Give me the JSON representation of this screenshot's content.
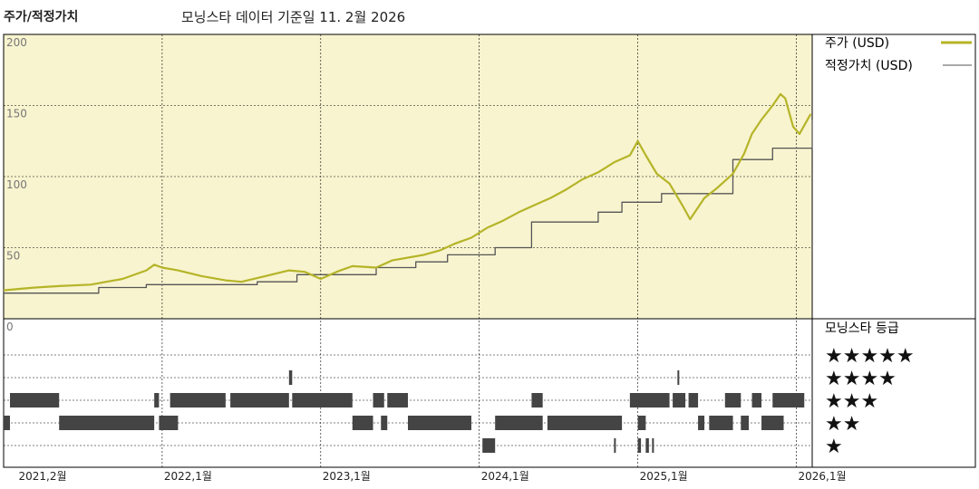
{
  "header": {
    "title": "주가/적정가치",
    "subtitle": "모닝스타 데이터 기준일 11. 2월 2026"
  },
  "colors": {
    "plot_bg": "#f8f4cf",
    "price_line": "#b5b428",
    "fair_value_line": "#555555",
    "grid": "#000000",
    "bars": "#444444"
  },
  "chart_data": {
    "type": "line",
    "ylim": [
      0,
      200
    ],
    "y_ticks": [
      "0",
      "50",
      "100",
      "150",
      "200"
    ],
    "x_tick_labels": [
      "2021,2월",
      "2022,1월",
      "2023,1월",
      "2024,1월",
      "2025,1월",
      "2026,1월"
    ],
    "x_tick_years": [
      2021.083,
      2022.0,
      2023.0,
      2024.0,
      2025.0,
      2026.0
    ],
    "x_range": [
      2021.0,
      2026.1
    ],
    "legend": {
      "placement": "right",
      "price_label": "주가 (USD)",
      "fair_value_label": "적정가치 (USD)"
    },
    "series": [
      {
        "name": "주가 (USD)",
        "points": [
          [
            2021.0,
            20
          ],
          [
            2021.1,
            21
          ],
          [
            2021.2,
            22
          ],
          [
            2021.35,
            23
          ],
          [
            2021.55,
            24
          ],
          [
            2021.75,
            28
          ],
          [
            2021.9,
            34
          ],
          [
            2021.95,
            38
          ],
          [
            2022.0,
            36
          ],
          [
            2022.1,
            34
          ],
          [
            2022.25,
            30
          ],
          [
            2022.4,
            27
          ],
          [
            2022.5,
            26
          ],
          [
            2022.65,
            30
          ],
          [
            2022.8,
            34
          ],
          [
            2022.9,
            33
          ],
          [
            2023.0,
            28
          ],
          [
            2023.1,
            33
          ],
          [
            2023.2,
            37
          ],
          [
            2023.35,
            36
          ],
          [
            2023.45,
            41
          ],
          [
            2023.55,
            43
          ],
          [
            2023.65,
            45
          ],
          [
            2023.75,
            48
          ],
          [
            2023.85,
            53
          ],
          [
            2023.95,
            57
          ],
          [
            2024.05,
            64
          ],
          [
            2024.15,
            69
          ],
          [
            2024.25,
            75
          ],
          [
            2024.35,
            80
          ],
          [
            2024.45,
            85
          ],
          [
            2024.55,
            91
          ],
          [
            2024.65,
            98
          ],
          [
            2024.75,
            103
          ],
          [
            2024.85,
            110
          ],
          [
            2024.95,
            115
          ],
          [
            2025.0,
            125
          ],
          [
            2025.05,
            115
          ],
          [
            2025.12,
            102
          ],
          [
            2025.2,
            95
          ],
          [
            2025.28,
            80
          ],
          [
            2025.33,
            70
          ],
          [
            2025.42,
            85
          ],
          [
            2025.5,
            92
          ],
          [
            2025.6,
            102
          ],
          [
            2025.67,
            116
          ],
          [
            2025.72,
            130
          ],
          [
            2025.78,
            140
          ],
          [
            2025.85,
            150
          ],
          [
            2025.9,
            158
          ],
          [
            2025.93,
            155
          ],
          [
            2025.98,
            135
          ],
          [
            2026.02,
            130
          ],
          [
            2026.06,
            138
          ],
          [
            2026.09,
            144
          ]
        ]
      },
      {
        "name": "적정가치 (USD)",
        "points": [
          [
            2021.0,
            18
          ],
          [
            2021.6,
            18
          ],
          [
            2021.6,
            22
          ],
          [
            2021.9,
            22
          ],
          [
            2021.9,
            24
          ],
          [
            2022.6,
            24
          ],
          [
            2022.6,
            26
          ],
          [
            2022.85,
            26
          ],
          [
            2022.85,
            31
          ],
          [
            2023.35,
            31
          ],
          [
            2023.35,
            36
          ],
          [
            2023.6,
            36
          ],
          [
            2023.6,
            40
          ],
          [
            2023.8,
            40
          ],
          [
            2023.8,
            45
          ],
          [
            2024.1,
            45
          ],
          [
            2024.1,
            50
          ],
          [
            2024.33,
            50
          ],
          [
            2024.33,
            68
          ],
          [
            2024.75,
            68
          ],
          [
            2024.75,
            75
          ],
          [
            2024.9,
            75
          ],
          [
            2024.9,
            82
          ],
          [
            2025.15,
            82
          ],
          [
            2025.15,
            88
          ],
          [
            2025.6,
            88
          ],
          [
            2025.6,
            112
          ],
          [
            2025.85,
            112
          ],
          [
            2025.85,
            120
          ],
          [
            2026.1,
            120
          ],
          [
            2026.1,
            140
          ]
        ]
      }
    ]
  },
  "rating": {
    "title": "모닝스타 등급",
    "rows": [
      {
        "stars": "★★★★★",
        "segments": []
      },
      {
        "stars": "★★★★",
        "segments": [
          [
            2022.8,
            2022.82
          ],
          [
            2025.25,
            2025.26
          ]
        ]
      },
      {
        "stars": "★★★",
        "segments": [
          [
            2021.04,
            2021.35
          ],
          [
            2021.95,
            2021.98
          ],
          [
            2022.05,
            2022.4
          ],
          [
            2022.43,
            2022.8
          ],
          [
            2022.82,
            2023.2
          ],
          [
            2023.33,
            2023.4
          ],
          [
            2023.42,
            2023.55
          ],
          [
            2024.33,
            2024.4
          ],
          [
            2024.95,
            2025.2
          ],
          [
            2025.22,
            2025.3
          ],
          [
            2025.32,
            2025.38
          ],
          [
            2025.55,
            2025.65
          ],
          [
            2025.72,
            2025.78
          ],
          [
            2025.85,
            2026.05
          ]
        ]
      },
      {
        "stars": "★★",
        "segments": [
          [
            2021.0,
            2021.04
          ],
          [
            2021.35,
            2021.95
          ],
          [
            2021.98,
            2022.1
          ],
          [
            2023.2,
            2023.33
          ],
          [
            2023.38,
            2023.42
          ],
          [
            2023.55,
            2023.95
          ],
          [
            2024.1,
            2024.4
          ],
          [
            2024.43,
            2024.9
          ],
          [
            2025.0,
            2025.05
          ],
          [
            2025.38,
            2025.42
          ],
          [
            2025.45,
            2025.6
          ],
          [
            2025.65,
            2025.7
          ],
          [
            2025.78,
            2025.92
          ]
        ]
      },
      {
        "stars": "★",
        "segments": [
          [
            2024.02,
            2024.1
          ],
          [
            2024.85,
            2024.86
          ],
          [
            2025.0,
            2025.02
          ],
          [
            2025.05,
            2025.07
          ],
          [
            2025.09,
            2025.1
          ]
        ]
      }
    ]
  }
}
